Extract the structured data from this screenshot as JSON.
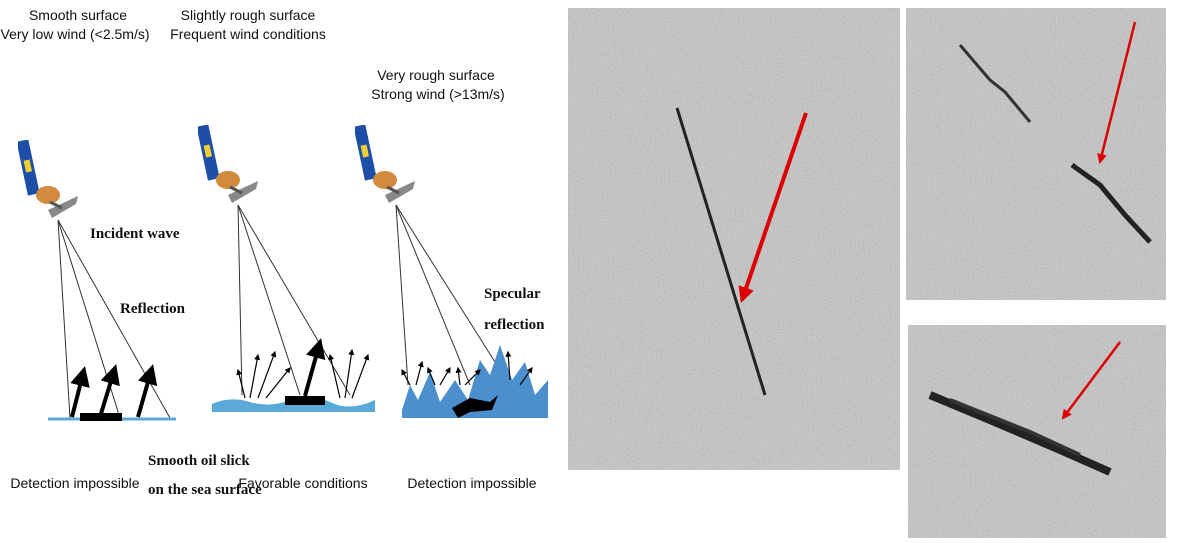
{
  "panels": [
    {
      "heading": [
        "Smooth surface",
        "Very low wind (<2.5m/s)"
      ],
      "result": "Detection impossible"
    },
    {
      "heading": [
        "Slightly rough surface",
        "Frequent wind conditions"
      ],
      "result": "Favorable conditions"
    },
    {
      "heading": [
        "Very rough surface",
        "Strong wind (>13m/s)"
      ],
      "result": "Detection impossible"
    }
  ],
  "labels": {
    "incident": "Incident wave",
    "reflection": "Reflection",
    "specular": [
      "Specular",
      "reflection"
    ],
    "slick": [
      "Smooth oil slick",
      "on the sea surface"
    ]
  }
}
